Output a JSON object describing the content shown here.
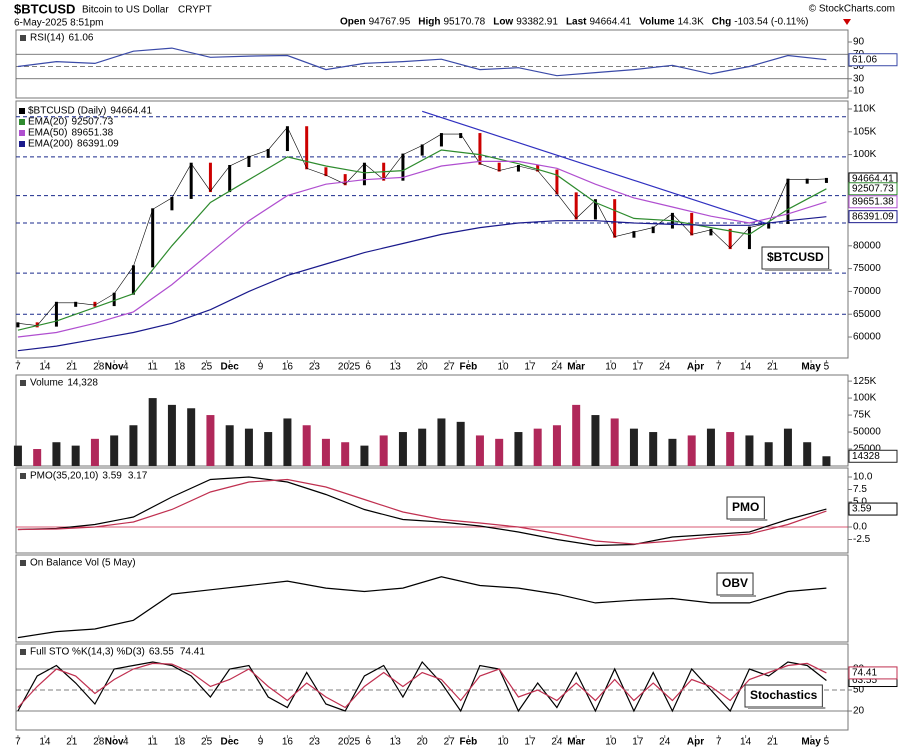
{
  "header": {
    "symbol": "$BTCUSD",
    "name": "Bitcoin to US Dollar",
    "exchange": "CRYPT",
    "date": "6-May-2025 8:51pm",
    "source": "© StockCharts.com",
    "quote": [
      {
        "label": "Open",
        "value": 94767.95
      },
      {
        "label": "High",
        "value": 95170.78
      },
      {
        "label": "Low",
        "value": 93382.91
      },
      {
        "label": "Last",
        "value": 94664.41
      },
      {
        "label": "Volume",
        "value": 14300,
        "value_label": "14.3K"
      },
      {
        "label": "Chg",
        "value": -103.54,
        "value_label": "-103.54 (-0.11%)"
      }
    ]
  },
  "chart_data": [
    {
      "type": "line",
      "label": "RSI(14)",
      "ylim": [
        -1.4,
        109.6
      ],
      "yticks": [
        10,
        30,
        50,
        70,
        90
      ],
      "ref_lines": [
        70,
        50,
        30
      ],
      "series": [
        {
          "color": "#3a4aa8",
          "value_box": true,
          "x": [
            0,
            10,
            20,
            30,
            40,
            50,
            60,
            70,
            80,
            90,
            100,
            110,
            120,
            130,
            140,
            150,
            160,
            170,
            180,
            190,
            200,
            210
          ],
          "values": [
            50,
            58,
            55,
            75,
            80,
            65,
            67,
            68,
            45,
            55,
            58,
            62,
            45,
            48,
            35,
            40,
            45,
            52,
            38,
            50,
            68,
            61.06
          ]
        }
      ]
    },
    {
      "type": "line",
      "legend": "stacked",
      "annotation": "$BTCUSD",
      "xlim": [
        -0.5,
        215.6
      ],
      "ylim": [
        55400,
        111750
      ],
      "xticks": [
        {
          "value": 0,
          "label": "7"
        },
        {
          "value": 7,
          "label": "14"
        },
        {
          "value": 14,
          "label": "21"
        },
        {
          "value": 21,
          "label": "28"
        },
        {
          "value": 25,
          "label": "Nov"
        },
        {
          "value": 28,
          "label": "4"
        },
        {
          "value": 35,
          "label": "11"
        },
        {
          "value": 42,
          "label": "18"
        },
        {
          "value": 49,
          "label": "25"
        },
        {
          "value": 55,
          "label": "Dec"
        },
        {
          "value": 63,
          "label": "9"
        },
        {
          "value": 70,
          "label": "16"
        },
        {
          "value": 77,
          "label": "23"
        },
        {
          "value": 86,
          "label": "2025"
        },
        {
          "value": 91,
          "label": "6"
        },
        {
          "value": 98,
          "label": "13"
        },
        {
          "value": 105,
          "label": "20"
        },
        {
          "value": 112,
          "label": "27"
        },
        {
          "value": 117,
          "label": "Feb"
        },
        {
          "value": 126,
          "label": "10"
        },
        {
          "value": 133,
          "label": "17"
        },
        {
          "value": 140,
          "label": "24"
        },
        {
          "value": 145,
          "label": "Mar"
        },
        {
          "value": 154,
          "label": "10"
        },
        {
          "value": 161,
          "label": "17"
        },
        {
          "value": 168,
          "label": "24"
        },
        {
          "value": 176,
          "label": "Apr"
        },
        {
          "value": 182,
          "label": "7"
        },
        {
          "value": 189,
          "label": "14"
        },
        {
          "value": 196,
          "label": "21"
        },
        {
          "value": 206,
          "label": "May"
        },
        {
          "value": 210,
          "label": "5"
        }
      ],
      "yticks": [
        {
          "value": 110000,
          "label": "110K"
        },
        {
          "value": 105000,
          "label": "105K"
        },
        {
          "value": 100000,
          "label": "100K"
        },
        80000,
        75000,
        70000,
        65000,
        60000
      ],
      "hlines": [
        108300,
        99500,
        91000,
        85000,
        74000,
        65000
      ],
      "trendline": {
        "x": [
          105,
          194
        ],
        "y": [
          109500,
          85000
        ],
        "color": "#3030c0"
      },
      "series": [
        {
          "name": "$BTCUSD (Daily)",
          "style": "bars",
          "color": "#000000",
          "up_color": "#000000",
          "down_color": "#cc0000",
          "value_box": true,
          "x": [
            0,
            5,
            10,
            15,
            20,
            25,
            30,
            35,
            40,
            45,
            50,
            55,
            60,
            65,
            70,
            75,
            80,
            85,
            90,
            95,
            100,
            105,
            110,
            115,
            120,
            125,
            130,
            135,
            140,
            145,
            150,
            155,
            160,
            165,
            170,
            175,
            180,
            185,
            190,
            195,
            200,
            205,
            210
          ],
          "values": [
            63000,
            62500,
            67500,
            67500,
            67000,
            69500,
            75500,
            88000,
            90500,
            98000,
            92000,
            97500,
            99500,
            101000,
            106000,
            97000,
            95500,
            93500,
            98000,
            94500,
            100000,
            102000,
            104500,
            104500,
            98000,
            96500,
            97500,
            96500,
            91500,
            86000,
            90000,
            82000,
            83000,
            84000,
            87000,
            82500,
            83500,
            79500,
            84000,
            85000,
            94500,
            94500,
            94664.41
          ]
        },
        {
          "name": "EMA(20)",
          "color": "#2e8b2e",
          "value_box": true,
          "x": [
            0,
            10,
            20,
            30,
            40,
            50,
            60,
            70,
            80,
            90,
            100,
            110,
            120,
            130,
            140,
            150,
            160,
            170,
            180,
            190,
            200,
            210
          ],
          "values": [
            61500,
            63500,
            66500,
            69500,
            80000,
            89500,
            94500,
            99500,
            97500,
            96000,
            96500,
            101000,
            100000,
            98000,
            95500,
            89500,
            86000,
            85500,
            84000,
            82500,
            88000,
            92507.73
          ]
        },
        {
          "name": "EMA(50)",
          "color": "#b04fd0",
          "value_box": true,
          "x": [
            0,
            10,
            20,
            30,
            40,
            50,
            60,
            70,
            80,
            90,
            100,
            110,
            120,
            130,
            140,
            150,
            160,
            170,
            180,
            190,
            200,
            210
          ],
          "values": [
            60000,
            61000,
            63000,
            65500,
            71500,
            78500,
            85500,
            91000,
            93500,
            94500,
            95000,
            97500,
            98500,
            98500,
            97000,
            93500,
            90500,
            88500,
            86500,
            85000,
            87000,
            89651.38
          ]
        },
        {
          "name": "EMA(200)",
          "color": "#1a1a8c",
          "value_box": true,
          "x": [
            0,
            10,
            20,
            30,
            40,
            50,
            60,
            70,
            80,
            90,
            100,
            110,
            120,
            130,
            140,
            150,
            160,
            170,
            180,
            190,
            200,
            210
          ],
          "values": [
            57000,
            58000,
            59500,
            61000,
            63000,
            66000,
            70000,
            73500,
            76000,
            78500,
            80500,
            82500,
            84000,
            85000,
            85500,
            85500,
            85000,
            84700,
            84500,
            84500,
            85500,
            86391.09
          ]
        }
      ]
    },
    {
      "type": "bar",
      "label": "Volume",
      "legend_value_label": "14,328",
      "ylim": [
        0,
        134000
      ],
      "up_color": "#222222",
      "down_color": "#b0285a",
      "yticks": [
        {
          "value": 125000,
          "label": "125K"
        },
        {
          "value": 100000,
          "label": "100K"
        },
        {
          "value": 75000,
          "label": "75K"
        },
        50000,
        25000
      ],
      "series": [
        {
          "color": "#222222",
          "value_box": true,
          "x": [
            0,
            5,
            10,
            15,
            20,
            25,
            30,
            35,
            40,
            45,
            50,
            55,
            60,
            65,
            70,
            75,
            80,
            85,
            90,
            95,
            100,
            105,
            110,
            115,
            120,
            125,
            130,
            135,
            140,
            145,
            150,
            155,
            160,
            165,
            170,
            175,
            180,
            185,
            190,
            195,
            200,
            205,
            210
          ],
          "values": [
            30000,
            25000,
            35000,
            30000,
            40000,
            45000,
            60000,
            100000,
            90000,
            85000,
            75000,
            60000,
            55000,
            50000,
            70000,
            60000,
            40000,
            35000,
            30000,
            45000,
            50000,
            55000,
            70000,
            65000,
            45000,
            40000,
            50000,
            55000,
            60000,
            90000,
            75000,
            70000,
            55000,
            50000,
            40000,
            45000,
            55000,
            50000,
            45000,
            35000,
            55000,
            35000,
            14328
          ]
        }
      ]
    },
    {
      "type": "line",
      "label": "PMO(35,20,10)",
      "annotation": "PMO",
      "ylim": [
        -5.2,
        11.8
      ],
      "ref_lines": [
        0
      ],
      "ref_color": "#cc2244",
      "yticks": [
        {
          "value": 10,
          "label": "10.0"
        },
        7.5,
        {
          "value": 5,
          "label": "5.0"
        },
        {
          "value": 0,
          "label": "0.0"
        },
        -2.5
      ],
      "series": [
        {
          "color": "#000000",
          "value_box": true,
          "x": [
            0,
            10,
            20,
            30,
            40,
            50,
            60,
            70,
            80,
            90,
            100,
            110,
            120,
            130,
            140,
            150,
            160,
            170,
            180,
            190,
            200,
            210
          ],
          "values": [
            -0.5,
            -0.3,
            0.5,
            2,
            6,
            9.5,
            10,
            9,
            6.5,
            3.5,
            1.5,
            1,
            0.2,
            -1,
            -2.5,
            -3.7,
            -3.5,
            -2,
            -1.5,
            -1,
            1.5,
            3.59
          ]
        },
        {
          "color": "#c03050",
          "x": [
            0,
            10,
            20,
            30,
            40,
            50,
            60,
            70,
            80,
            90,
            100,
            110,
            120,
            130,
            140,
            150,
            160,
            170,
            180,
            190,
            200,
            210
          ],
          "values": [
            -0.5,
            -0.4,
            0,
            1,
            3.5,
            7,
            9,
            9.5,
            8,
            5.5,
            3,
            1.5,
            0.8,
            0,
            -1.3,
            -2.8,
            -3.4,
            -2.8,
            -2,
            -1.4,
            0.5,
            3.17
          ]
        }
      ]
    },
    {
      "type": "line",
      "label": "On Balance Vol (5 May)",
      "annotation": "OBV",
      "ylim": [
        0,
        100
      ],
      "series": [
        {
          "color": "#000000",
          "x": [
            0,
            10,
            20,
            30,
            40,
            50,
            60,
            70,
            80,
            90,
            100,
            110,
            120,
            130,
            140,
            150,
            160,
            170,
            180,
            190,
            200,
            210
          ],
          "values": [
            5,
            12,
            15,
            25,
            55,
            60,
            65,
            70,
            62,
            58,
            62,
            75,
            65,
            62,
            55,
            45,
            48,
            50,
            45,
            45,
            58,
            62
          ]
        }
      ]
    },
    {
      "type": "line",
      "label": "Full STO %K(14,3) %D(3)",
      "annotation": "Stochastics",
      "ylim": [
        -7.1,
        115.7
      ],
      "yticks": [
        20,
        50,
        80
      ],
      "ref_lines": [
        80,
        50,
        20
      ],
      "series": [
        {
          "color": "#000000",
          "value_box": true,
          "x": [
            0,
            5,
            10,
            15,
            20,
            25,
            30,
            35,
            40,
            45,
            50,
            55,
            60,
            65,
            70,
            75,
            80,
            85,
            90,
            95,
            100,
            105,
            110,
            115,
            120,
            125,
            130,
            135,
            140,
            145,
            150,
            155,
            160,
            165,
            170,
            175,
            180,
            185,
            190,
            195,
            200,
            205,
            210
          ],
          "values": [
            20,
            70,
            85,
            60,
            30,
            80,
            85,
            90,
            85,
            70,
            40,
            80,
            85,
            40,
            25,
            75,
            30,
            20,
            70,
            85,
            40,
            90,
            60,
            20,
            85,
            80,
            20,
            60,
            25,
            75,
            20,
            80,
            20,
            75,
            20,
            80,
            50,
            20,
            80,
            70,
            90,
            85,
            63.55
          ]
        },
        {
          "color": "#c03050",
          "value_box": true,
          "x": [
            0,
            5,
            10,
            15,
            20,
            25,
            30,
            35,
            40,
            45,
            50,
            55,
            60,
            65,
            70,
            75,
            80,
            85,
            90,
            95,
            100,
            105,
            110,
            115,
            120,
            125,
            130,
            135,
            140,
            145,
            150,
            155,
            160,
            165,
            170,
            175,
            180,
            185,
            190,
            195,
            200,
            205,
            210
          ],
          "values": [
            25,
            55,
            80,
            70,
            45,
            65,
            80,
            88,
            87,
            75,
            55,
            65,
            80,
            55,
            35,
            60,
            40,
            25,
            55,
            75,
            55,
            75,
            65,
            35,
            70,
            80,
            40,
            50,
            35,
            60,
            35,
            65,
            35,
            60,
            35,
            65,
            55,
            35,
            65,
            75,
            85,
            88,
            74.41
          ]
        }
      ]
    }
  ]
}
